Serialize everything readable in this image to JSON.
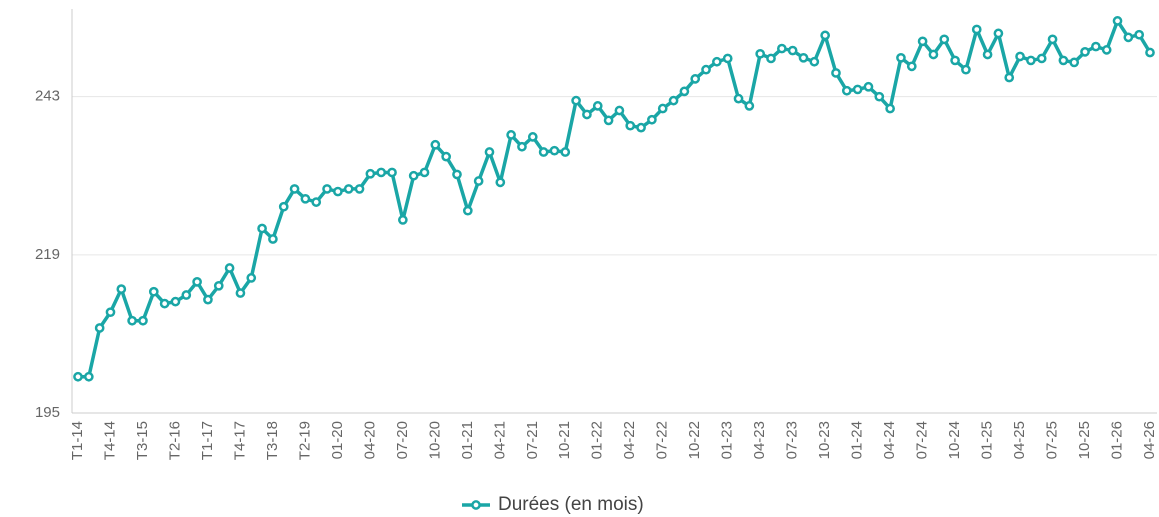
{
  "chart_data": {
    "type": "line",
    "categories": [
      "T1-14",
      null,
      null,
      "T4-14",
      null,
      null,
      "T3-15",
      null,
      null,
      "T2-16",
      null,
      null,
      "T1-17",
      null,
      null,
      "T4-17",
      null,
      null,
      "T3-18",
      null,
      null,
      "T2-19",
      null,
      null,
      "01-20",
      null,
      null,
      "04-20",
      null,
      null,
      "07-20",
      null,
      null,
      "10-20",
      null,
      null,
      "01-21",
      null,
      null,
      "04-21",
      null,
      null,
      "07-21",
      null,
      null,
      "10-21",
      null,
      null,
      "01-22",
      null,
      null,
      "04-22",
      null,
      null,
      "07-22",
      null,
      null,
      "10-22",
      null,
      null,
      "01-23",
      null,
      null,
      "04-23",
      null,
      null,
      "07-23",
      null,
      null,
      "10-23",
      null,
      null,
      "01-24",
      null,
      null,
      "04-24",
      null,
      null,
      "07-24",
      null,
      null,
      "10-24",
      null,
      null,
      "01-25",
      null,
      null,
      "04-25",
      null,
      null,
      "07-25",
      null,
      null,
      "10-25",
      null,
      null,
      "01-26",
      null,
      null,
      "04-26"
    ],
    "series": [
      {
        "name": "Durées (en mois)",
        "color": "#1aa6a6",
        "values": [
          200.5,
          200.5,
          207.9,
          210.3,
          213.8,
          209,
          209,
          213.4,
          211.6,
          211.9,
          212.9,
          214.9,
          212.2,
          214.3,
          217,
          213.2,
          215.5,
          223,
          221.4,
          226.3,
          229,
          227.5,
          227,
          229,
          228.6,
          229,
          229,
          231.3,
          231.5,
          231.5,
          224.3,
          231,
          231.5,
          235.7,
          233.9,
          231.2,
          225.7,
          230.2,
          234.6,
          230,
          237.2,
          235.4,
          236.9,
          234.6,
          234.8,
          234.6,
          242.4,
          240.3,
          241.6,
          239.4,
          240.9,
          238.6,
          238.3,
          239.5,
          241.2,
          242.4,
          243.8,
          245.7,
          247.1,
          248.3,
          248.8,
          242.7,
          241.6,
          249.5,
          248.8,
          250.3,
          250,
          248.9,
          248.3,
          252.3,
          246.6,
          243.9,
          244.1,
          244.5,
          243,
          241.2,
          248.9,
          247.6,
          251.4,
          249.4,
          251.7,
          248.5,
          247.1,
          253.2,
          249.4,
          252.6,
          245.9,
          249.1,
          248.5,
          248.8,
          251.7,
          248.5,
          248.2,
          249.8,
          250.6,
          250.1,
          254.5,
          252,
          252.4,
          249.7
        ]
      }
    ],
    "ylim": [
      195,
      256
    ],
    "yticks": [
      195,
      219,
      243
    ],
    "grid": true,
    "legend": "bottom"
  }
}
